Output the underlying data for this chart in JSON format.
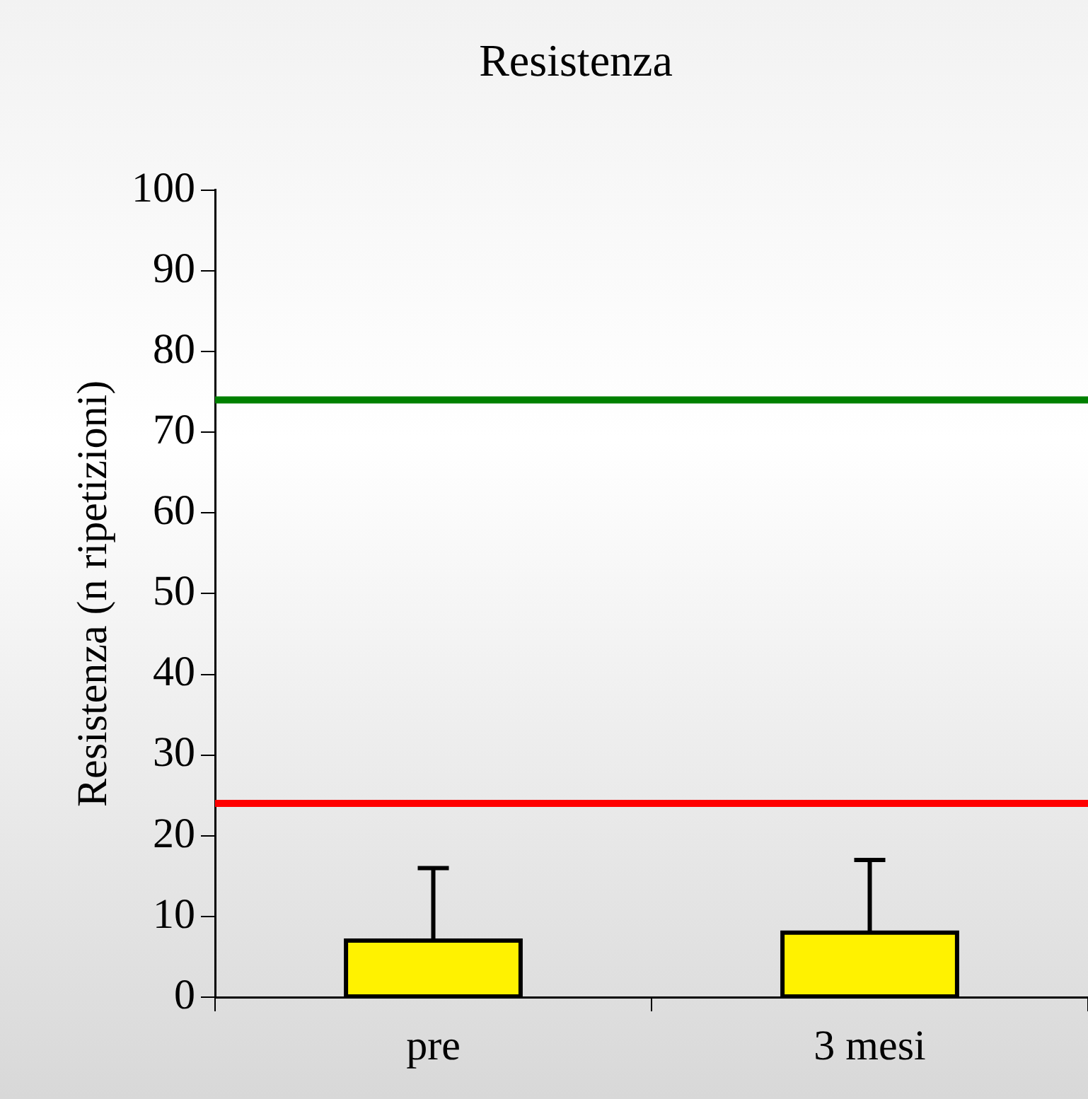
{
  "chart_data": {
    "type": "bar",
    "title": "Resistenza",
    "ylabel": "Resistenza (n ripetizioni)",
    "categories": [
      "pre",
      "3 mesi"
    ],
    "series": [
      {
        "color": "#fff200",
        "values": [
          7,
          8
        ],
        "errors": [
          [
            7,
            16
          ],
          [
            8,
            17
          ]
        ]
      }
    ],
    "ylim": [
      0,
      100
    ],
    "yticks": [
      0,
      10,
      20,
      30,
      40,
      50,
      60,
      70,
      80,
      90,
      100
    ],
    "grid": false,
    "legend": false,
    "ref_lines": [
      {
        "axis": "y",
        "value": 74,
        "color": "#008000"
      },
      {
        "axis": "y",
        "value": 24,
        "color": "#ff0000"
      }
    ]
  }
}
